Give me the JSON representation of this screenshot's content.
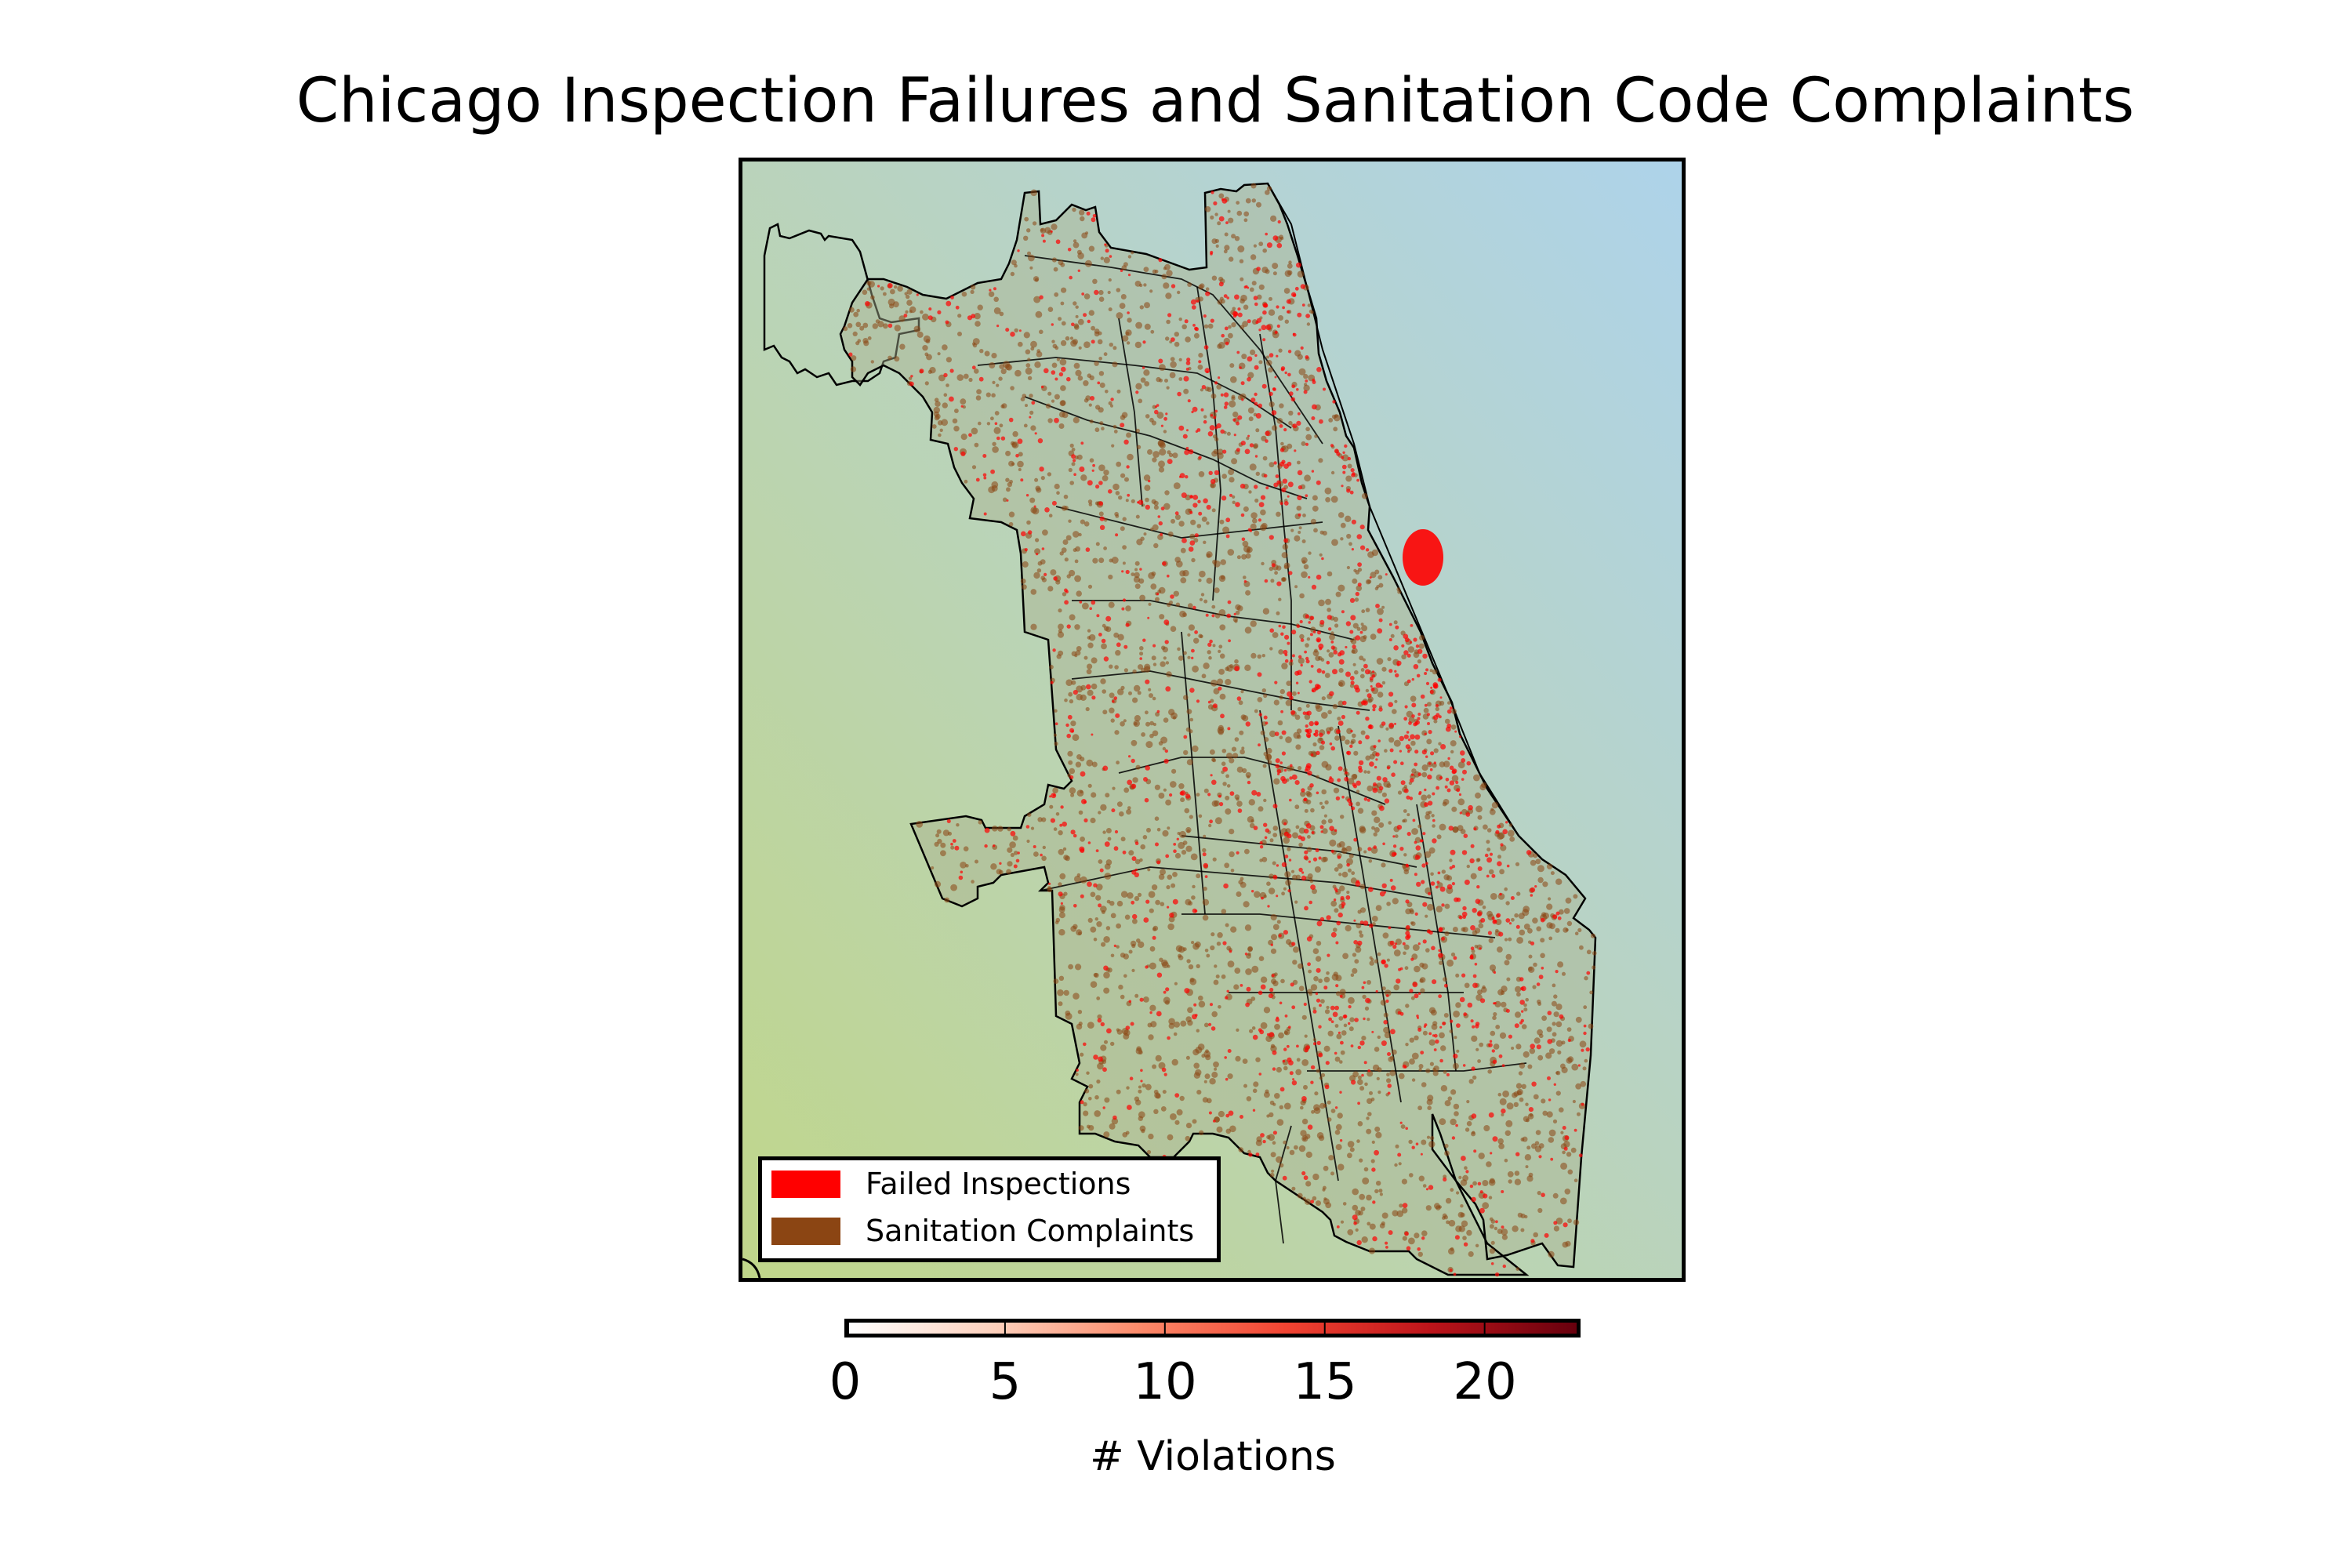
{
  "figure": {
    "title": "Chicago Inspection Failures and Sanitation Code Complaints"
  },
  "map": {
    "background_gradient": {
      "top_right": "#aed3ea",
      "mid": "#b8d4c4",
      "bottom_left": "#c0d68a"
    },
    "boundary_color": "#000000",
    "layers": [
      {
        "name": "Failed Inspections",
        "color": "#ff0000"
      },
      {
        "name": "Sanitation Complaints",
        "color": "#8b4513"
      }
    ]
  },
  "legend": {
    "items": [
      {
        "label": "Failed Inspections",
        "color": "#ff0000"
      },
      {
        "label": "Sanitation Complaints",
        "color": "#8b4513"
      }
    ],
    "placement": "lower-left"
  },
  "colorbar": {
    "label": "# Violations",
    "min": 0,
    "max": 23,
    "ticks": [
      "0",
      "5",
      "10",
      "15",
      "20"
    ],
    "colormap": "Reds",
    "colors": [
      "#ffffff",
      "#fdd0bc",
      "#fc8a6a",
      "#f14432",
      "#bc141a",
      "#67000d"
    ]
  }
}
